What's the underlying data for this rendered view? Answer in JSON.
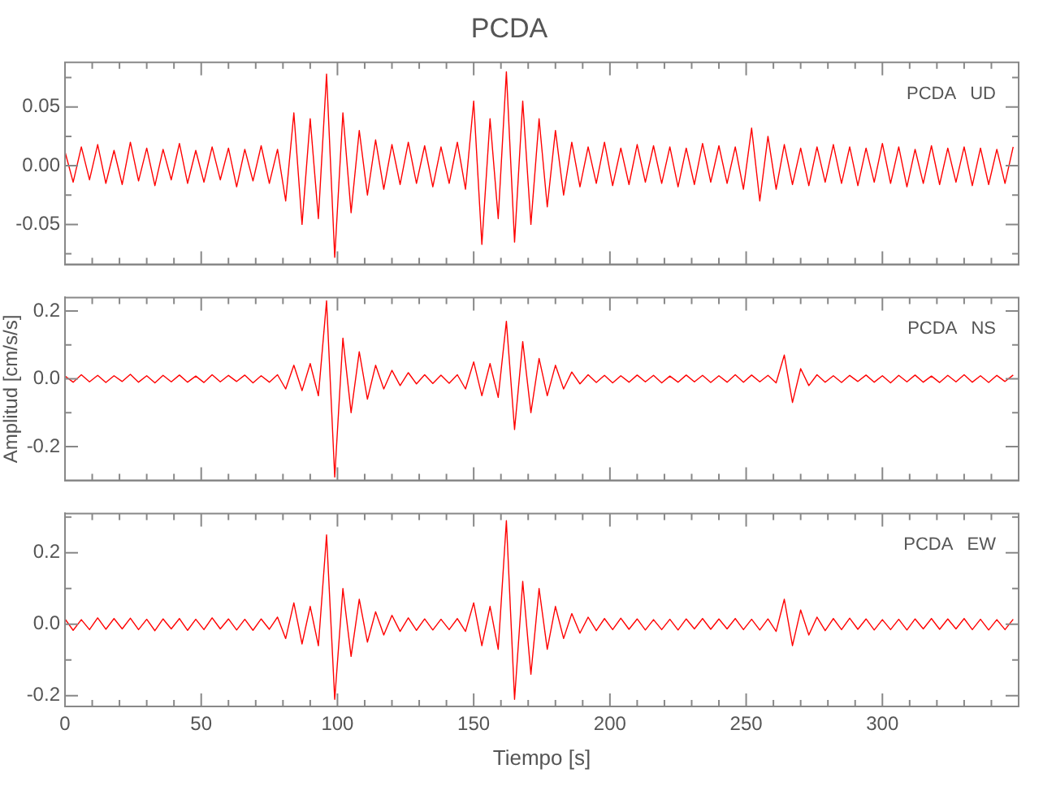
{
  "chart_data": [
    {
      "type": "line",
      "title": "PCDA",
      "annotations": [
        "PCDA   UD"
      ],
      "color": "#ff0000",
      "marker": "none",
      "grid": false,
      "legend": false,
      "tick_labels": "y",
      "xlim": [
        0,
        350
      ],
      "ylim": [
        -0.084,
        0.088
      ],
      "xticks": [
        0,
        {
          "value": 10,
          "label": null
        },
        {
          "value": 20,
          "label": null
        },
        {
          "value": 30,
          "label": null
        },
        {
          "value": 40,
          "label": null
        },
        50,
        {
          "value": 60,
          "label": null
        },
        {
          "value": 70,
          "label": null
        },
        {
          "value": 80,
          "label": null
        },
        {
          "value": 90,
          "label": null
        },
        100,
        {
          "value": 110,
          "label": null
        },
        {
          "value": 120,
          "label": null
        },
        {
          "value": 130,
          "label": null
        },
        {
          "value": 140,
          "label": null
        },
        150,
        {
          "value": 160,
          "label": null
        },
        {
          "value": 170,
          "label": null
        },
        {
          "value": 180,
          "label": null
        },
        {
          "value": 190,
          "label": null
        },
        200,
        {
          "value": 210,
          "label": null
        },
        {
          "value": 220,
          "label": null
        },
        {
          "value": 230,
          "label": null
        },
        {
          "value": 240,
          "label": null
        },
        250,
        {
          "value": 260,
          "label": null
        },
        {
          "value": 270,
          "label": null
        },
        {
          "value": 280,
          "label": null
        },
        {
          "value": 290,
          "label": null
        },
        300,
        {
          "value": 310,
          "label": null
        },
        {
          "value": 320,
          "label": null
        },
        {
          "value": 330,
          "label": null
        },
        {
          "value": 340,
          "label": null
        }
      ],
      "yticks": [
        {
          "value": -0.075,
          "label": null
        },
        {
          "value": -0.05,
          "label": "-0.05"
        },
        {
          "value": -0.025,
          "label": null
        },
        {
          "value": 0,
          "label": "0.00"
        },
        {
          "value": 0.025,
          "label": null
        },
        {
          "value": 0.05,
          "label": "0.05"
        },
        {
          "value": 0.075,
          "label": null
        }
      ],
      "x": [
        0,
        3,
        6,
        9,
        12,
        15,
        18,
        21,
        24,
        27,
        30,
        33,
        36,
        39,
        42,
        45,
        48,
        51,
        54,
        57,
        60,
        63,
        66,
        69,
        72,
        75,
        78,
        81,
        84,
        87,
        90,
        93,
        96,
        99,
        102,
        105,
        108,
        111,
        114,
        117,
        120,
        123,
        126,
        129,
        132,
        135,
        138,
        141,
        144,
        147,
        150,
        153,
        156,
        159,
        162,
        165,
        168,
        171,
        174,
        177,
        180,
        183,
        186,
        189,
        192,
        195,
        198,
        201,
        204,
        207,
        210,
        213,
        216,
        219,
        222,
        225,
        228,
        231,
        234,
        237,
        240,
        243,
        246,
        249,
        252,
        255,
        258,
        261,
        264,
        267,
        270,
        273,
        276,
        279,
        282,
        285,
        288,
        291,
        294,
        297,
        300,
        303,
        306,
        309,
        312,
        315,
        318,
        321,
        324,
        327,
        330,
        333,
        336,
        339,
        342,
        345,
        348
      ],
      "values": [
        0.012,
        -0.014,
        0.016,
        -0.012,
        0.018,
        -0.015,
        0.013,
        -0.016,
        0.02,
        -0.013,
        0.015,
        -0.017,
        0.014,
        -0.012,
        0.019,
        -0.015,
        0.013,
        -0.014,
        0.016,
        -0.012,
        0.015,
        -0.018,
        0.014,
        -0.013,
        0.017,
        -0.015,
        0.014,
        -0.03,
        0.045,
        -0.05,
        0.04,
        -0.045,
        0.078,
        -0.078,
        0.045,
        -0.04,
        0.03,
        -0.025,
        0.022,
        -0.02,
        0.018,
        -0.016,
        0.02,
        -0.015,
        0.017,
        -0.018,
        0.016,
        -0.015,
        0.02,
        -0.02,
        0.055,
        -0.067,
        0.04,
        -0.045,
        0.08,
        -0.065,
        0.055,
        -0.05,
        0.04,
        -0.035,
        0.03,
        -0.025,
        0.02,
        -0.018,
        0.016,
        -0.015,
        0.02,
        -0.017,
        0.015,
        -0.016,
        0.018,
        -0.014,
        0.017,
        -0.015,
        0.016,
        -0.018,
        0.015,
        -0.016,
        0.019,
        -0.014,
        0.017,
        -0.015,
        0.016,
        -0.02,
        0.032,
        -0.03,
        0.025,
        -0.02,
        0.018,
        -0.016,
        0.015,
        -0.017,
        0.016,
        -0.014,
        0.018,
        -0.015,
        0.016,
        -0.017,
        0.015,
        -0.014,
        0.019,
        -0.015,
        0.016,
        -0.018,
        0.014,
        -0.015,
        0.017,
        -0.016,
        0.015,
        -0.014,
        0.016,
        -0.017,
        0.015,
        -0.016,
        0.014,
        -0.015,
        0.016
      ]
    },
    {
      "type": "line",
      "ylabel": "Amplitud [cm/s/s]",
      "annotations": [
        "PCDA   NS"
      ],
      "color": "#ff0000",
      "marker": "none",
      "grid": false,
      "legend": false,
      "tick_labels": "y",
      "xlim": [
        0,
        350
      ],
      "ylim": [
        -0.3,
        0.24
      ],
      "xticks": [
        0,
        {
          "value": 10,
          "label": null
        },
        {
          "value": 20,
          "label": null
        },
        {
          "value": 30,
          "label": null
        },
        {
          "value": 40,
          "label": null
        },
        50,
        {
          "value": 60,
          "label": null
        },
        {
          "value": 70,
          "label": null
        },
        {
          "value": 80,
          "label": null
        },
        {
          "value": 90,
          "label": null
        },
        100,
        {
          "value": 110,
          "label": null
        },
        {
          "value": 120,
          "label": null
        },
        {
          "value": 130,
          "label": null
        },
        {
          "value": 140,
          "label": null
        },
        150,
        {
          "value": 160,
          "label": null
        },
        {
          "value": 170,
          "label": null
        },
        {
          "value": 180,
          "label": null
        },
        {
          "value": 190,
          "label": null
        },
        200,
        {
          "value": 210,
          "label": null
        },
        {
          "value": 220,
          "label": null
        },
        {
          "value": 230,
          "label": null
        },
        {
          "value": 240,
          "label": null
        },
        250,
        {
          "value": 260,
          "label": null
        },
        {
          "value": 270,
          "label": null
        },
        {
          "value": 280,
          "label": null
        },
        {
          "value": 290,
          "label": null
        },
        300,
        {
          "value": 310,
          "label": null
        },
        {
          "value": 320,
          "label": null
        },
        {
          "value": 330,
          "label": null
        },
        {
          "value": 340,
          "label": null
        }
      ],
      "yticks": [
        {
          "value": -0.2,
          "label": "-0.2"
        },
        {
          "value": -0.1,
          "label": null
        },
        {
          "value": 0,
          "label": "0.0"
        },
        {
          "value": 0.1,
          "label": null
        },
        {
          "value": 0.2,
          "label": "0.2"
        }
      ],
      "x": [
        0,
        3,
        6,
        9,
        12,
        15,
        18,
        21,
        24,
        27,
        30,
        33,
        36,
        39,
        42,
        45,
        48,
        51,
        54,
        57,
        60,
        63,
        66,
        69,
        72,
        75,
        78,
        81,
        84,
        87,
        90,
        93,
        96,
        99,
        102,
        105,
        108,
        111,
        114,
        117,
        120,
        123,
        126,
        129,
        132,
        135,
        138,
        141,
        144,
        147,
        150,
        153,
        156,
        159,
        162,
        165,
        168,
        171,
        174,
        177,
        180,
        183,
        186,
        189,
        192,
        195,
        198,
        201,
        204,
        207,
        210,
        213,
        216,
        219,
        222,
        225,
        228,
        231,
        234,
        237,
        240,
        243,
        246,
        249,
        252,
        255,
        258,
        261,
        264,
        267,
        270,
        273,
        276,
        279,
        282,
        285,
        288,
        291,
        294,
        297,
        300,
        303,
        306,
        309,
        312,
        315,
        318,
        321,
        324,
        327,
        330,
        333,
        336,
        339,
        342,
        345,
        348
      ],
      "values": [
        0.008,
        -0.01,
        0.012,
        -0.009,
        0.01,
        -0.011,
        0.009,
        -0.008,
        0.013,
        -0.01,
        0.009,
        -0.012,
        0.01,
        -0.009,
        0.011,
        -0.01,
        0.008,
        -0.011,
        0.012,
        -0.009,
        0.01,
        -0.008,
        0.011,
        -0.012,
        0.009,
        -0.01,
        0.012,
        -0.03,
        0.04,
        -0.035,
        0.045,
        -0.05,
        0.23,
        -0.29,
        0.12,
        -0.1,
        0.08,
        -0.06,
        0.04,
        -0.03,
        0.025,
        -0.02,
        0.018,
        -0.015,
        0.012,
        -0.014,
        0.011,
        -0.013,
        0.012,
        -0.03,
        0.05,
        -0.05,
        0.045,
        -0.055,
        0.17,
        -0.15,
        0.11,
        -0.1,
        0.06,
        -0.05,
        0.04,
        -0.03,
        0.02,
        -0.015,
        0.012,
        -0.011,
        0.01,
        -0.012,
        0.009,
        -0.01,
        0.011,
        -0.009,
        0.01,
        -0.012,
        0.008,
        -0.01,
        0.011,
        -0.009,
        0.01,
        -0.011,
        0.009,
        -0.01,
        0.012,
        -0.01,
        0.011,
        -0.009,
        0.01,
        -0.012,
        0.07,
        -0.07,
        0.03,
        -0.02,
        0.012,
        -0.01,
        0.009,
        -0.011,
        0.01,
        -0.008,
        0.011,
        -0.01,
        0.009,
        -0.012,
        0.01,
        -0.009,
        0.011,
        -0.01,
        0.008,
        -0.011,
        0.01,
        -0.009,
        0.012,
        -0.01,
        0.009,
        -0.011,
        0.01,
        -0.008,
        0.011
      ]
    },
    {
      "type": "line",
      "xlabel": "Tiempo [s]",
      "annotations": [
        "PCDA   EW"
      ],
      "color": "#ff0000",
      "marker": "none",
      "grid": false,
      "legend": false,
      "xlim": [
        0,
        350
      ],
      "ylim": [
        -0.23,
        0.31
      ],
      "xticks": [
        0,
        {
          "value": 10,
          "label": null
        },
        {
          "value": 20,
          "label": null
        },
        {
          "value": 30,
          "label": null
        },
        {
          "value": 40,
          "label": null
        },
        50,
        {
          "value": 60,
          "label": null
        },
        {
          "value": 70,
          "label": null
        },
        {
          "value": 80,
          "label": null
        },
        {
          "value": 90,
          "label": null
        },
        100,
        {
          "value": 110,
          "label": null
        },
        {
          "value": 120,
          "label": null
        },
        {
          "value": 130,
          "label": null
        },
        {
          "value": 140,
          "label": null
        },
        150,
        {
          "value": 160,
          "label": null
        },
        {
          "value": 170,
          "label": null
        },
        {
          "value": 180,
          "label": null
        },
        {
          "value": 190,
          "label": null
        },
        200,
        {
          "value": 210,
          "label": null
        },
        {
          "value": 220,
          "label": null
        },
        {
          "value": 230,
          "label": null
        },
        {
          "value": 240,
          "label": null
        },
        250,
        {
          "value": 260,
          "label": null
        },
        {
          "value": 270,
          "label": null
        },
        {
          "value": 280,
          "label": null
        },
        {
          "value": 290,
          "label": null
        },
        300,
        {
          "value": 310,
          "label": null
        },
        {
          "value": 320,
          "label": null
        },
        {
          "value": 330,
          "label": null
        },
        {
          "value": 340,
          "label": null
        }
      ],
      "yticks": [
        {
          "value": -0.2,
          "label": "-0.2"
        },
        {
          "value": -0.1,
          "label": null
        },
        {
          "value": 0,
          "label": "0.0"
        },
        {
          "value": 0.1,
          "label": null
        },
        {
          "value": 0.2,
          "label": "0.2"
        },
        {
          "value": 0.3,
          "label": null
        }
      ],
      "x": [
        0,
        3,
        6,
        9,
        12,
        15,
        18,
        21,
        24,
        27,
        30,
        33,
        36,
        39,
        42,
        45,
        48,
        51,
        54,
        57,
        60,
        63,
        66,
        69,
        72,
        75,
        78,
        81,
        84,
        87,
        90,
        93,
        96,
        99,
        102,
        105,
        108,
        111,
        114,
        117,
        120,
        123,
        126,
        129,
        132,
        135,
        138,
        141,
        144,
        147,
        150,
        153,
        156,
        159,
        162,
        165,
        168,
        171,
        174,
        177,
        180,
        183,
        186,
        189,
        192,
        195,
        198,
        201,
        204,
        207,
        210,
        213,
        216,
        219,
        222,
        225,
        228,
        231,
        234,
        237,
        240,
        243,
        246,
        249,
        252,
        255,
        258,
        261,
        264,
        267,
        270,
        273,
        276,
        279,
        282,
        285,
        288,
        291,
        294,
        297,
        300,
        303,
        306,
        309,
        312,
        315,
        318,
        321,
        324,
        327,
        330,
        333,
        336,
        339,
        342,
        345,
        348
      ],
      "values": [
        0.015,
        -0.017,
        0.013,
        -0.015,
        0.018,
        -0.014,
        0.016,
        -0.013,
        0.017,
        -0.015,
        0.014,
        -0.018,
        0.015,
        -0.013,
        0.016,
        -0.017,
        0.014,
        -0.015,
        0.018,
        -0.013,
        0.015,
        -0.016,
        0.014,
        -0.017,
        0.015,
        -0.014,
        0.02,
        -0.04,
        0.06,
        -0.055,
        0.05,
        -0.06,
        0.25,
        -0.21,
        0.1,
        -0.09,
        0.07,
        -0.05,
        0.035,
        -0.03,
        0.025,
        -0.02,
        0.018,
        -0.017,
        0.015,
        -0.016,
        0.014,
        -0.015,
        0.016,
        -0.02,
        0.06,
        -0.06,
        0.05,
        -0.07,
        0.29,
        -0.21,
        0.12,
        -0.14,
        0.1,
        -0.07,
        0.05,
        -0.04,
        0.03,
        -0.025,
        0.02,
        -0.018,
        0.016,
        -0.015,
        0.017,
        -0.014,
        0.015,
        -0.016,
        0.013,
        -0.015,
        0.014,
        -0.016,
        0.015,
        -0.013,
        0.016,
        -0.014,
        0.015,
        -0.013,
        0.016,
        -0.015,
        0.014,
        -0.016,
        0.015,
        -0.02,
        0.07,
        -0.06,
        0.04,
        -0.03,
        0.02,
        -0.018,
        0.016,
        -0.015,
        0.017,
        -0.014,
        0.015,
        -0.016,
        0.013,
        -0.015,
        0.014,
        -0.016,
        0.015,
        -0.013,
        0.016,
        -0.014,
        0.015,
        -0.013,
        0.016,
        -0.015,
        0.014,
        -0.016,
        0.013,
        -0.015,
        0.014
      ]
    }
  ]
}
